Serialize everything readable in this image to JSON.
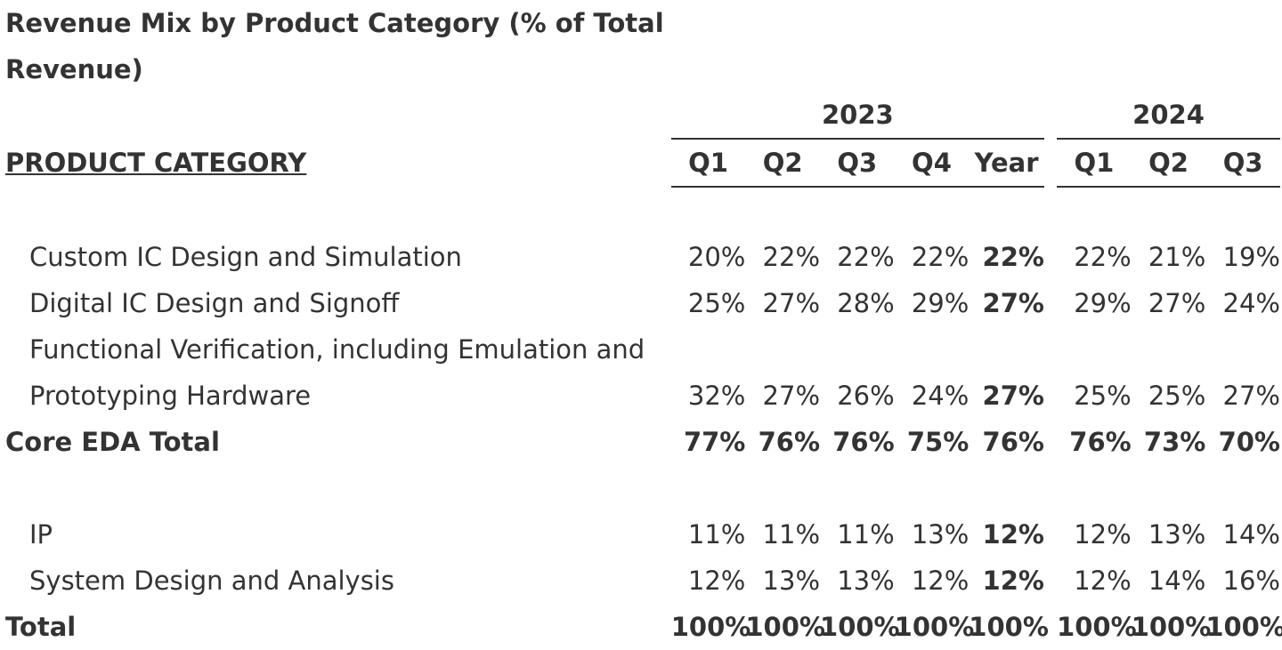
{
  "title": "Revenue Mix by Product Category (% of Total Revenue)",
  "header": {
    "category_label": "PRODUCT CATEGORY",
    "year_2023": "2023",
    "year_2024": "2024",
    "cols_2023": [
      "Q1",
      "Q2",
      "Q3",
      "Q4",
      "Year"
    ],
    "cols_2024": [
      "Q1",
      "Q2",
      "Q3"
    ]
  },
  "rows": {
    "custom_ic": {
      "label": "Custom IC Design and Simulation",
      "v2023": [
        "20%",
        "22%",
        "22%",
        "22%",
        "22%"
      ],
      "v2024": [
        "22%",
        "21%",
        "19%"
      ]
    },
    "digital_ic": {
      "label": "Digital IC Design and Signoff",
      "v2023": [
        "25%",
        "27%",
        "28%",
        "29%",
        "27%"
      ],
      "v2024": [
        "29%",
        "27%",
        "24%"
      ]
    },
    "functional_verification": {
      "label_line1": "Functional Verification, including Emulation and",
      "label_line2": "Prototyping Hardware",
      "v2023": [
        "32%",
        "27%",
        "26%",
        "24%",
        "27%"
      ],
      "v2024": [
        "25%",
        "25%",
        "27%"
      ]
    },
    "core_eda_total": {
      "label": "Core EDA Total",
      "v2023": [
        "77%",
        "76%",
        "76%",
        "75%",
        "76%"
      ],
      "v2024": [
        "76%",
        "73%",
        "70%"
      ]
    },
    "ip": {
      "label": "IP",
      "v2023": [
        "11%",
        "11%",
        "11%",
        "13%",
        "12%"
      ],
      "v2024": [
        "12%",
        "13%",
        "14%"
      ]
    },
    "system_design": {
      "label": "System Design and Analysis",
      "v2023": [
        "12%",
        "13%",
        "13%",
        "12%",
        "12%"
      ],
      "v2024": [
        "12%",
        "14%",
        "16%"
      ]
    },
    "total": {
      "label": "Total",
      "v2023": [
        "100%",
        "100%",
        "100%",
        "100%",
        "100%"
      ],
      "v2024": [
        "100%",
        "100%",
        "100%"
      ]
    }
  }
}
